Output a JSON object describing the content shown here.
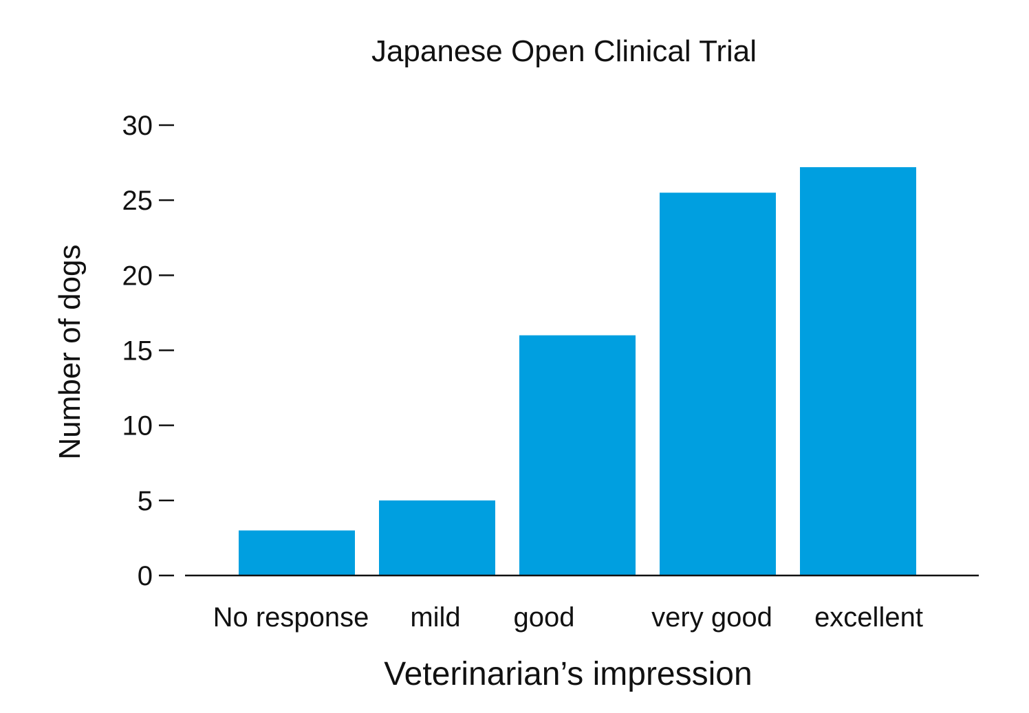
{
  "chart_data": {
    "type": "bar",
    "title": "Japanese Open Clinical Trial",
    "xlabel": "Veterinarian’s impression",
    "ylabel": "Number of dogs",
    "categories": [
      "No response",
      "mild",
      "good",
      "very good",
      "excellent"
    ],
    "values": [
      3,
      5,
      16,
      25.5,
      27.2
    ],
    "ylim": [
      0,
      30
    ],
    "yticks": [
      0,
      5,
      10,
      15,
      20,
      25,
      30
    ],
    "ytick_labels": [
      "0",
      "5",
      "10",
      "15",
      "20",
      "25",
      "30"
    ],
    "grid": false,
    "bar_color": "#009fe0",
    "axis_color": "#111111"
  }
}
